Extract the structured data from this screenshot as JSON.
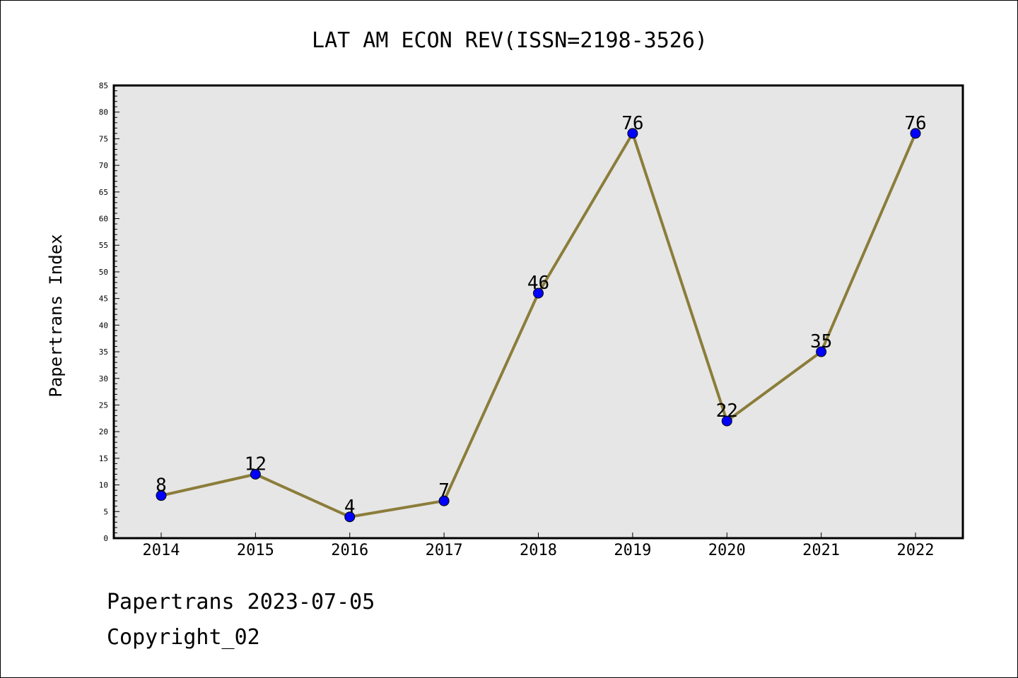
{
  "chart_data": {
    "type": "line",
    "title": "LAT AM ECON REV(ISSN=2198-3526)",
    "xlabel": "",
    "ylabel": "Papertrans Index",
    "categories": [
      "2014",
      "2015",
      "2016",
      "2017",
      "2018",
      "2019",
      "2020",
      "2021",
      "2022"
    ],
    "values": [
      8,
      12,
      4,
      7,
      46,
      76,
      22,
      35,
      76
    ],
    "ylim": [
      0,
      85
    ],
    "yticks": [
      0,
      5,
      10,
      15,
      20,
      25,
      30,
      35,
      40,
      45,
      50,
      55,
      60,
      65,
      70,
      75,
      80,
      85
    ],
    "grid": false,
    "legend": "none",
    "colors": {
      "line": "#8B7D3A",
      "marker": "#0000FF",
      "plot_bg": "#E6E6E6"
    }
  },
  "footer": {
    "line1": "Papertrans 2023-07-05",
    "line2": "Copyright_02"
  }
}
